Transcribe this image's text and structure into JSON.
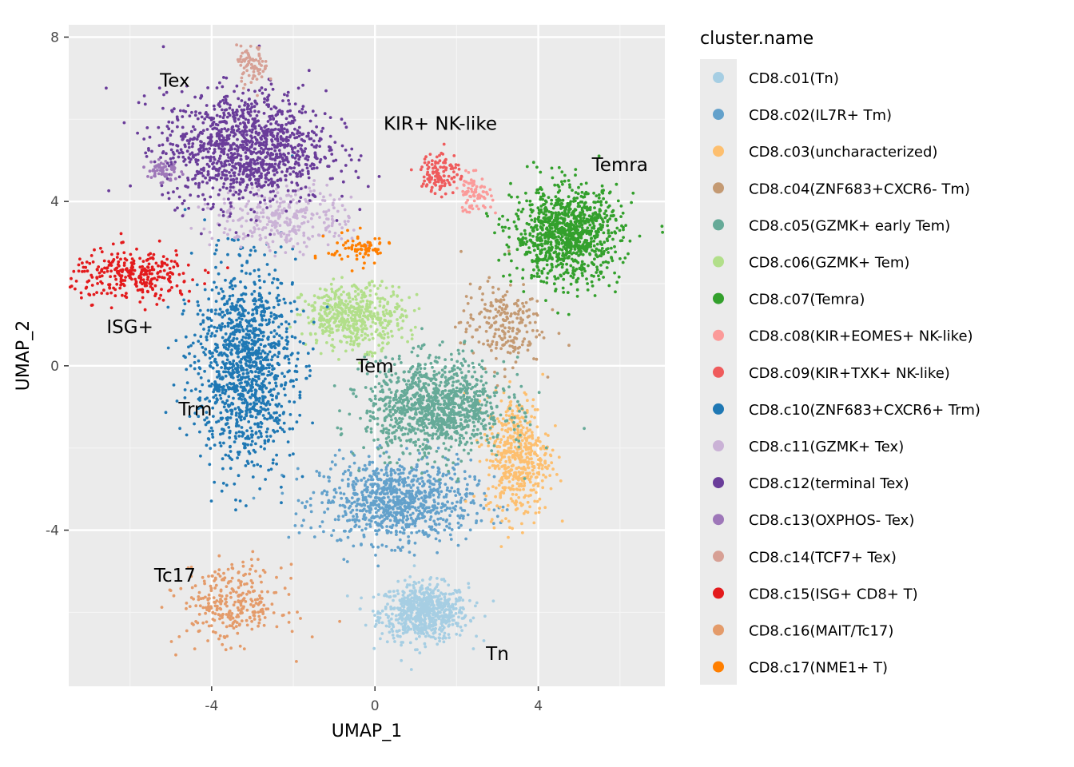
{
  "chart_data": {
    "type": "scatter",
    "xlabel": "UMAP_1",
    "ylabel": "UMAP_2",
    "xlim": [
      -7.5,
      7.1
    ],
    "ylim": [
      -7.8,
      8.3
    ],
    "x_ticks": [
      -4,
      0,
      4
    ],
    "y_ticks": [
      -4,
      0,
      4,
      8
    ],
    "x_tick_labels": [
      "-4",
      "0",
      "4"
    ],
    "y_tick_labels": [
      "-4",
      "0",
      "4",
      "8"
    ],
    "grid": true,
    "panel_background": "#ebebeb",
    "legend_position": "right",
    "legend_title": "cluster.name",
    "series": [
      {
        "name": "CD8.c01(Tn)",
        "color": "#a6cee3",
        "center": [
          1.2,
          -6.0
        ],
        "spread": [
          1.4,
          0.9
        ],
        "n": 700
      },
      {
        "name": "CD8.c02(IL7R+ Tm)",
        "color": "#63a1cb",
        "center": [
          0.5,
          -3.3
        ],
        "spread": [
          2.4,
          1.3
        ],
        "n": 900
      },
      {
        "name": "CD8.c03(uncharacterized)",
        "color": "#fdbf6f",
        "center": [
          3.5,
          -2.2
        ],
        "spread": [
          1.0,
          1.9
        ],
        "n": 500
      },
      {
        "name": "CD8.c04(ZNF683+CXCR6- Tm)",
        "color": "#c49a73",
        "center": [
          3.1,
          1.0
        ],
        "spread": [
          1.3,
          1.3
        ],
        "n": 220
      },
      {
        "name": "CD8.c05(GZMK+ early Tem)",
        "color": "#66aa98",
        "center": [
          1.5,
          -1.0
        ],
        "spread": [
          2.2,
          1.5
        ],
        "n": 1100
      },
      {
        "name": "CD8.c06(GZMK+ Tem)",
        "color": "#b2df8a",
        "center": [
          -0.5,
          1.2
        ],
        "spread": [
          1.6,
          1.0
        ],
        "n": 500
      },
      {
        "name": "CD8.c07(Temra)",
        "color": "#33a02c",
        "center": [
          4.7,
          3.2
        ],
        "spread": [
          1.7,
          1.5
        ],
        "n": 1000
      },
      {
        "name": "CD8.c08(KIR+EOMES+ NK-like)",
        "color": "#fb9a99",
        "center": [
          2.4,
          4.2
        ],
        "spread": [
          0.6,
          0.6
        ],
        "n": 80
      },
      {
        "name": "CD8.c09(KIR+TXK+ NK-like)",
        "color": "#ef5b5c",
        "center": [
          1.6,
          4.7
        ],
        "spread": [
          0.6,
          0.7
        ],
        "n": 120
      },
      {
        "name": "CD8.c10(ZNF683+CXCR6+ Trm)",
        "color": "#1f78b4",
        "center": [
          -3.2,
          0.0
        ],
        "spread": [
          1.6,
          3.1
        ],
        "n": 1200
      },
      {
        "name": "CD8.c11(GZMK+ Tex)",
        "color": "#cab2d6",
        "center": [
          -2.2,
          3.6
        ],
        "spread": [
          2.2,
          1.0
        ],
        "n": 300
      },
      {
        "name": "CD8.c12(terminal Tex)",
        "color": "#6a3d9a",
        "center": [
          -3.2,
          5.3
        ],
        "spread": [
          2.6,
          1.8
        ],
        "n": 1200
      },
      {
        "name": "CD8.c13(OXPHOS- Tex)",
        "color": "#9e77b9",
        "center": [
          -5.2,
          4.75
        ],
        "spread": [
          0.5,
          0.4
        ],
        "n": 60
      },
      {
        "name": "CD8.c14(TCF7+ Tex)",
        "color": "#d7a095",
        "center": [
          -3.0,
          7.3
        ],
        "spread": [
          0.5,
          0.6
        ],
        "n": 80
      },
      {
        "name": "CD8.c15(ISG+ CD8+ T)",
        "color": "#e31a1c",
        "center": [
          -5.9,
          2.2
        ],
        "spread": [
          2.0,
          0.8
        ],
        "n": 300
      },
      {
        "name": "CD8.c16(MAIT/Tc17)",
        "color": "#e49b6a",
        "center": [
          -3.5,
          -5.8
        ],
        "spread": [
          1.6,
          1.2
        ],
        "n": 300
      },
      {
        "name": "CD8.c17(NME1+ T)",
        "color": "#ff7f00",
        "center": [
          -0.4,
          2.85
        ],
        "spread": [
          1.0,
          0.5
        ],
        "n": 80
      }
    ],
    "annotations": [
      {
        "text": "Tex",
        "x": -4.9,
        "y": 6.95
      },
      {
        "text": "KIR+ NK-like",
        "x": 1.6,
        "y": 5.9
      },
      {
        "text": "Temra",
        "x": 6.0,
        "y": 4.9
      },
      {
        "text": "ISG+",
        "x": -6.0,
        "y": 0.95
      },
      {
        "text": "Tem",
        "x": 0.0,
        "y": 0.0
      },
      {
        "text": "Trm",
        "x": -4.4,
        "y": -1.05
      },
      {
        "text": "Tc17",
        "x": -4.9,
        "y": -5.1
      },
      {
        "text": "Tn",
        "x": 3.0,
        "y": -7.0
      }
    ]
  }
}
